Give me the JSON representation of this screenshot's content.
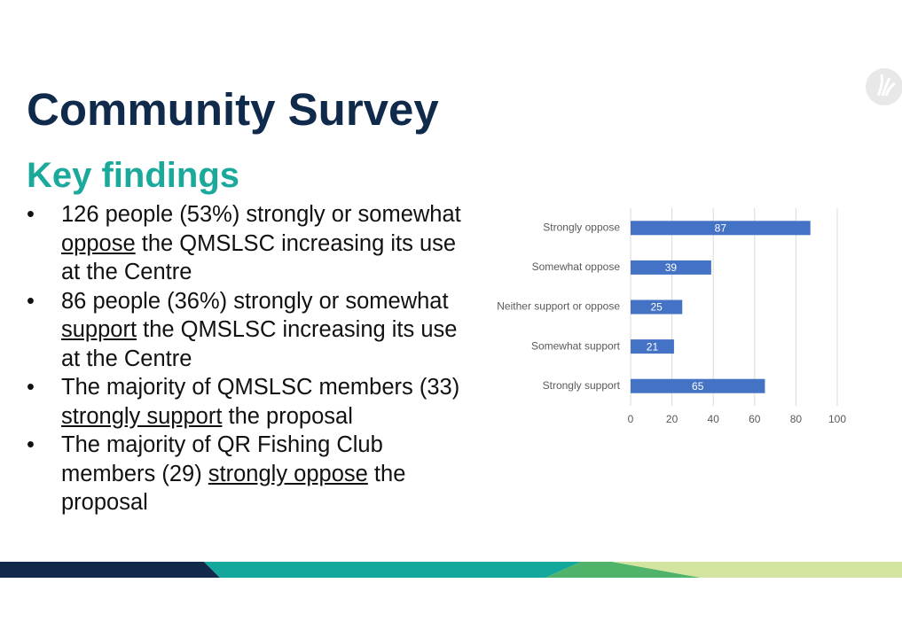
{
  "title": "Community Survey",
  "subtitle": "Key findings",
  "bullets": [
    {
      "before": "126 people (53%) strongly or somewhat ",
      "underlined": "oppose",
      "after": " the QMSLSC increasing its use at the Centre"
    },
    {
      "before": "86 people (36%) strongly or somewhat ",
      "underlined": "support",
      "after": " the QMSLSC increasing its use at the Centre"
    },
    {
      "before": "The majority of QMSLSC members (33) ",
      "underlined": "strongly support",
      "after": " the proposal"
    },
    {
      "before": "The majority of QR Fishing Club members (29) ",
      "underlined": "strongly oppose",
      "after": " the proposal"
    }
  ],
  "chart_data": {
    "type": "hbar",
    "categories": [
      "Strongly oppose",
      "Somewhat oppose",
      "Neither support or oppose",
      "Somewhat support",
      "Strongly support"
    ],
    "values": [
      87,
      39,
      25,
      21,
      65
    ],
    "color": "#4472c4",
    "xlim": [
      0,
      100
    ],
    "xticks": [
      0,
      20,
      40,
      60,
      80,
      100
    ],
    "grid": true
  }
}
